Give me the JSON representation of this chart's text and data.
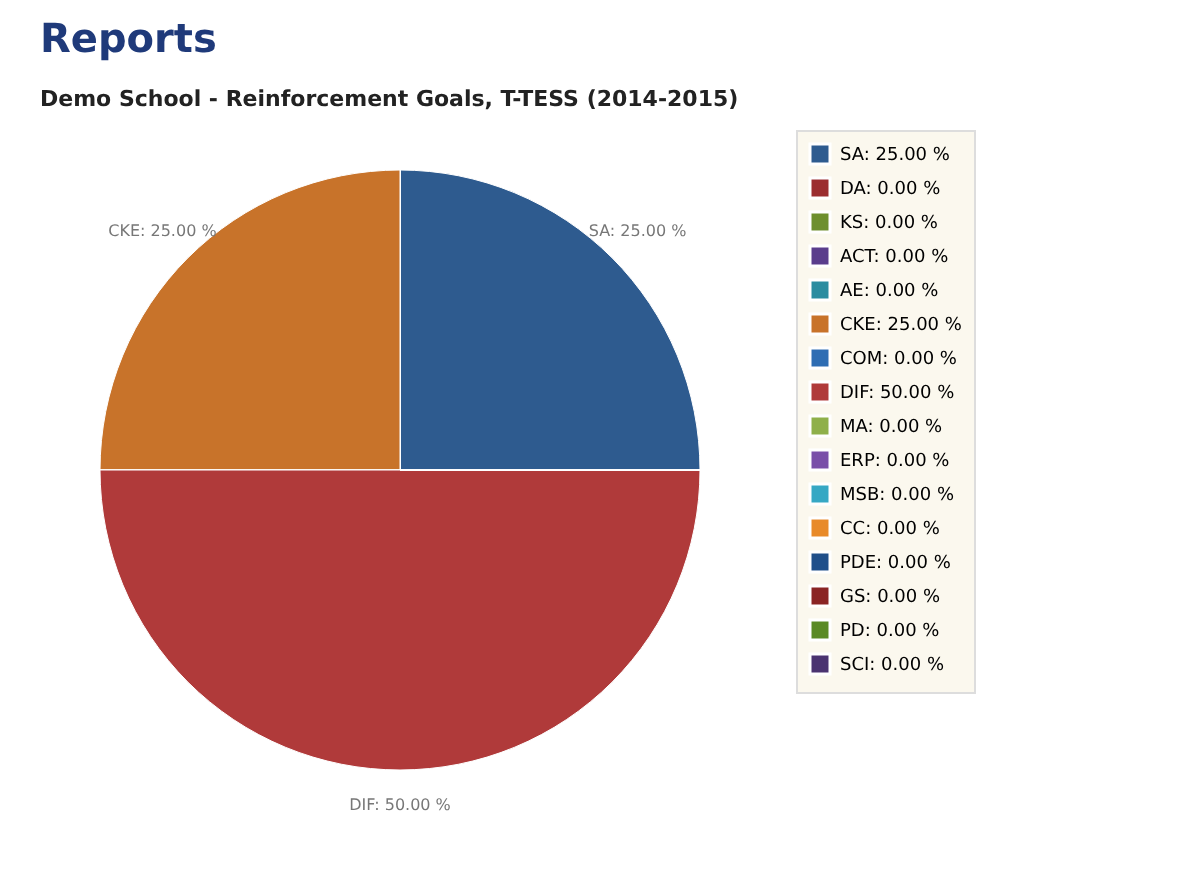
{
  "chart_data": {
    "type": "pie",
    "title": "Reports",
    "subtitle": "Demo School - Reinforcement Goals, T-TESS (2014-2015)",
    "categories": [
      "SA: 25.00 %",
      "DA: 0.00 %",
      "KS: 0.00 %",
      "ACT: 0.00 %",
      "AE: 0.00 %",
      "CKE: 25.00 %",
      "COM: 0.00 %",
      "DIF: 50.00 %",
      "MA: 0.00 %",
      "ERP: 0.00 %",
      "MSB: 0.00 %",
      "CC: 0.00 %",
      "PDE: 0.00 %",
      "GS: 0.00 %",
      "PD: 0.00 %",
      "SCI: 0.00 %"
    ],
    "values": [
      25,
      0,
      0,
      0,
      0,
      25,
      0,
      50,
      0,
      0,
      0,
      0,
      0,
      0,
      0,
      0
    ],
    "colors": [
      "#2e5b8f",
      "#9b2d30",
      "#6e8f2e",
      "#5a3d8c",
      "#2a8ca0",
      "#c8732a",
      "#2e6db3",
      "#b03a3a",
      "#8fb04a",
      "#7a4fa8",
      "#36a8c4",
      "#e88a2a",
      "#1f4f8a",
      "#8a2424",
      "#5a8a24",
      "#4a3370"
    ],
    "value_labels": [
      "SA: 25.00 %",
      null,
      null,
      null,
      null,
      "CKE: 25.00 %",
      null,
      "DIF: 50.00 %",
      null,
      null,
      null,
      null,
      null,
      null,
      null,
      null
    ],
    "legend": "right"
  }
}
